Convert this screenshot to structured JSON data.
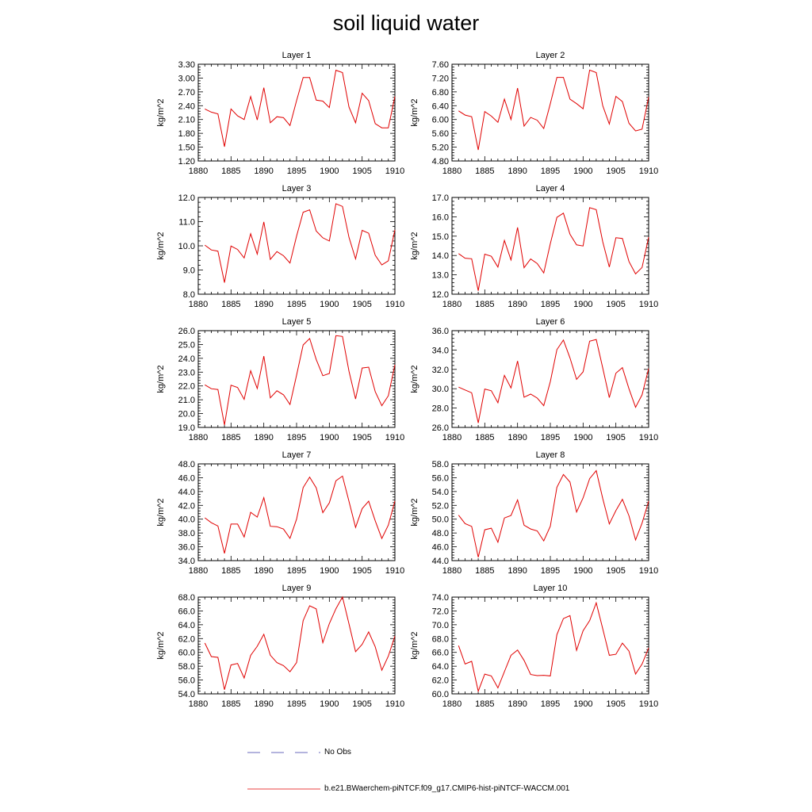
{
  "title": "soil liquid water",
  "colors": {
    "model_line": "#e00000",
    "obs_line": "#3a3aa8",
    "axis": "#000000"
  },
  "legend": [
    {
      "label": "No Obs",
      "style": "dashed",
      "color": "#3a3aa8"
    },
    {
      "label": "b.e21.BWaerchem-piNTCF.f09_g17.CMIP6-hist-piNTCF-WACCM.001",
      "style": "solid",
      "color": "#e00000"
    }
  ],
  "chart_data": [
    {
      "type": "line",
      "title": "Layer 1",
      "ylabel": "kg/m^2",
      "xlim": [
        1880,
        1910
      ],
      "ylim": [
        1.2,
        3.3
      ],
      "xticks": [
        1880,
        1885,
        1890,
        1895,
        1900,
        1905,
        1910
      ],
      "yticks": [
        "1.20",
        "1.50",
        "1.80",
        "2.10",
        "2.40",
        "2.70",
        "3.00",
        "3.30"
      ],
      "series": [
        {
          "x": [
            1881,
            1882,
            1883,
            1884,
            1885,
            1886,
            1887,
            1888,
            1889,
            1890,
            1891,
            1892,
            1893,
            1894,
            1895,
            1896,
            1897,
            1898,
            1899,
            1900,
            1901,
            1902,
            1903,
            1904,
            1905,
            1906,
            1907,
            1908,
            1909,
            1910
          ],
          "values": [
            2.33,
            2.26,
            2.22,
            1.51,
            2.33,
            2.18,
            2.1,
            2.6,
            2.09,
            2.79,
            2.03,
            2.16,
            2.14,
            1.97,
            2.51,
            3.01,
            3.01,
            2.52,
            2.5,
            2.36,
            3.17,
            3.12,
            2.37,
            2.03,
            2.67,
            2.51,
            2.01,
            1.92,
            1.92,
            2.6
          ]
        }
      ]
    },
    {
      "type": "line",
      "title": "Layer 2",
      "ylabel": "kg/m^2",
      "xlim": [
        1880,
        1910
      ],
      "ylim": [
        4.8,
        7.6
      ],
      "xticks": [
        1880,
        1885,
        1890,
        1895,
        1900,
        1905,
        1910
      ],
      "yticks": [
        "4.80",
        "5.20",
        "5.60",
        "6.00",
        "6.40",
        "6.80",
        "7.20",
        "7.60"
      ],
      "series": [
        {
          "x": [
            1881,
            1882,
            1883,
            1884,
            1885,
            1886,
            1887,
            1888,
            1889,
            1890,
            1891,
            1892,
            1893,
            1894,
            1895,
            1896,
            1897,
            1898,
            1899,
            1900,
            1901,
            1902,
            1903,
            1904,
            1905,
            1906,
            1907,
            1908,
            1909,
            1910
          ],
          "values": [
            6.25,
            6.13,
            6.08,
            5.12,
            6.23,
            6.1,
            5.92,
            6.59,
            6.0,
            6.91,
            5.81,
            6.06,
            5.98,
            5.74,
            6.46,
            7.22,
            7.22,
            6.59,
            6.46,
            6.31,
            7.43,
            7.36,
            6.4,
            5.87,
            6.67,
            6.52,
            5.89,
            5.67,
            5.72,
            6.65
          ]
        }
      ]
    },
    {
      "type": "line",
      "title": "Layer 3",
      "ylabel": "kg/m^2",
      "xlim": [
        1880,
        1910
      ],
      "ylim": [
        8.0,
        12.0
      ],
      "xticks": [
        1880,
        1885,
        1890,
        1895,
        1900,
        1905,
        1910
      ],
      "yticks": [
        "8.0",
        "9.0",
        "10.0",
        "11.0",
        "12.0"
      ],
      "series": [
        {
          "x": [
            1881,
            1882,
            1883,
            1884,
            1885,
            1886,
            1887,
            1888,
            1889,
            1890,
            1891,
            1892,
            1893,
            1894,
            1895,
            1896,
            1897,
            1898,
            1899,
            1900,
            1901,
            1902,
            1903,
            1904,
            1905,
            1906,
            1907,
            1908,
            1909,
            1910
          ],
          "values": [
            10.03,
            9.83,
            9.78,
            8.48,
            9.99,
            9.85,
            9.5,
            10.5,
            9.66,
            10.99,
            9.44,
            9.76,
            9.59,
            9.29,
            10.4,
            11.39,
            11.49,
            10.61,
            10.33,
            10.2,
            11.74,
            11.63,
            10.35,
            9.46,
            10.64,
            10.52,
            9.61,
            9.21,
            9.38,
            10.66
          ]
        }
      ]
    },
    {
      "type": "line",
      "title": "Layer 4",
      "ylabel": "kg/m^2",
      "xlim": [
        1880,
        1910
      ],
      "ylim": [
        12.0,
        17.0
      ],
      "xticks": [
        1880,
        1885,
        1890,
        1895,
        1900,
        1905,
        1910
      ],
      "yticks": [
        "12.0",
        "13.0",
        "14.0",
        "15.0",
        "16.0",
        "17.0"
      ],
      "series": [
        {
          "x": [
            1881,
            1882,
            1883,
            1884,
            1885,
            1886,
            1887,
            1888,
            1889,
            1890,
            1891,
            1892,
            1893,
            1894,
            1895,
            1896,
            1897,
            1898,
            1899,
            1900,
            1901,
            1902,
            1903,
            1904,
            1905,
            1906,
            1907,
            1908,
            1909,
            1910
          ],
          "values": [
            14.1,
            13.86,
            13.83,
            12.18,
            14.07,
            13.96,
            13.4,
            14.78,
            13.77,
            15.45,
            13.37,
            13.82,
            13.58,
            13.1,
            14.61,
            15.97,
            16.19,
            15.1,
            14.55,
            14.49,
            16.47,
            16.37,
            14.71,
            13.4,
            14.92,
            14.88,
            13.69,
            13.05,
            13.38,
            14.95
          ]
        }
      ]
    },
    {
      "type": "line",
      "title": "Layer 5",
      "ylabel": "kg/m^2",
      "xlim": [
        1880,
        1910
      ],
      "ylim": [
        19.0,
        26.0
      ],
      "xticks": [
        1880,
        1885,
        1890,
        1895,
        1900,
        1905,
        1910
      ],
      "yticks": [
        "19.0",
        "20.0",
        "21.0",
        "22.0",
        "23.0",
        "24.0",
        "25.0",
        "26.0"
      ],
      "series": [
        {
          "x": [
            1881,
            1882,
            1883,
            1884,
            1885,
            1886,
            1887,
            1888,
            1889,
            1890,
            1891,
            1892,
            1893,
            1894,
            1895,
            1896,
            1897,
            1898,
            1899,
            1900,
            1901,
            1902,
            1903,
            1904,
            1905,
            1906,
            1907,
            1908,
            1909,
            1910
          ],
          "values": [
            22.08,
            21.8,
            21.74,
            19.18,
            22.05,
            21.89,
            21.03,
            23.1,
            21.82,
            24.16,
            21.14,
            21.65,
            21.36,
            20.66,
            22.78,
            24.97,
            25.43,
            23.91,
            22.74,
            22.9,
            25.64,
            25.58,
            23.07,
            21.06,
            23.3,
            23.36,
            21.58,
            20.57,
            21.29,
            23.53
          ]
        }
      ]
    },
    {
      "type": "line",
      "title": "Layer 6",
      "ylabel": "kg/m^2",
      "xlim": [
        1880,
        1910
      ],
      "ylim": [
        26.0,
        36.0
      ],
      "xticks": [
        1880,
        1885,
        1890,
        1895,
        1900,
        1905,
        1910
      ],
      "yticks": [
        "26.0",
        "28.0",
        "30.0",
        "32.0",
        "34.0",
        "36.0"
      ],
      "series": [
        {
          "x": [
            1881,
            1882,
            1883,
            1884,
            1885,
            1886,
            1887,
            1888,
            1889,
            1890,
            1891,
            1892,
            1893,
            1894,
            1895,
            1896,
            1897,
            1898,
            1899,
            1900,
            1901,
            1902,
            1903,
            1904,
            1905,
            1906,
            1907,
            1908,
            1909,
            1910
          ],
          "values": [
            30.16,
            29.87,
            29.58,
            26.46,
            29.97,
            29.79,
            28.55,
            31.38,
            30.08,
            32.87,
            29.12,
            29.44,
            29.03,
            28.25,
            30.74,
            34.04,
            35.03,
            33.18,
            30.97,
            31.74,
            34.91,
            35.09,
            32.15,
            29.08,
            31.61,
            32.18,
            29.99,
            28.08,
            29.37,
            32.09
          ]
        }
      ]
    },
    {
      "type": "line",
      "title": "Layer 7",
      "ylabel": "kg/m^2",
      "xlim": [
        1880,
        1910
      ],
      "ylim": [
        34.0,
        48.0
      ],
      "xticks": [
        1880,
        1885,
        1890,
        1895,
        1900,
        1905,
        1910
      ],
      "yticks": [
        "34.0",
        "36.0",
        "38.0",
        "40.0",
        "42.0",
        "44.0",
        "46.0",
        "48.0"
      ],
      "series": [
        {
          "x": [
            1881,
            1882,
            1883,
            1884,
            1885,
            1886,
            1887,
            1888,
            1889,
            1890,
            1891,
            1892,
            1893,
            1894,
            1895,
            1896,
            1897,
            1898,
            1899,
            1900,
            1901,
            1902,
            1903,
            1904,
            1905,
            1906,
            1907,
            1908,
            1909,
            1910
          ],
          "values": [
            40.2,
            39.49,
            39.02,
            35.04,
            39.29,
            39.29,
            37.42,
            40.99,
            40.3,
            43.11,
            38.97,
            38.91,
            38.57,
            37.22,
            40.0,
            44.57,
            46.08,
            44.54,
            40.94,
            42.37,
            45.56,
            46.23,
            42.58,
            38.81,
            41.53,
            42.61,
            39.76,
            37.2,
            39.14,
            42.63
          ]
        }
      ]
    },
    {
      "type": "line",
      "title": "Layer 8",
      "ylabel": "kg/m^2",
      "xlim": [
        1880,
        1910
      ],
      "ylim": [
        44.0,
        58.0
      ],
      "xticks": [
        1880,
        1885,
        1890,
        1895,
        1900,
        1905,
        1910
      ],
      "yticks": [
        "44.0",
        "46.0",
        "48.0",
        "50.0",
        "52.0",
        "54.0",
        "56.0",
        "58.0"
      ],
      "series": [
        {
          "x": [
            1881,
            1882,
            1883,
            1884,
            1885,
            1886,
            1887,
            1888,
            1889,
            1890,
            1891,
            1892,
            1893,
            1894,
            1895,
            1896,
            1897,
            1898,
            1899,
            1900,
            1901,
            1902,
            1903,
            1904,
            1905,
            1906,
            1907,
            1908,
            1909,
            1910
          ],
          "values": [
            50.58,
            49.36,
            48.96,
            44.49,
            48.46,
            48.69,
            46.66,
            50.17,
            50.53,
            52.79,
            49.13,
            48.58,
            48.3,
            46.86,
            48.98,
            54.61,
            56.46,
            55.37,
            51.03,
            53.07,
            55.87,
            57.03,
            53.0,
            49.31,
            51.24,
            52.87,
            50.48,
            46.99,
            49.43,
            52.61
          ]
        }
      ]
    },
    {
      "type": "line",
      "title": "Layer 9",
      "ylabel": "kg/m^2",
      "xlim": [
        1880,
        1910
      ],
      "ylim": [
        54.0,
        68.0
      ],
      "xticks": [
        1880,
        1885,
        1890,
        1895,
        1900,
        1905,
        1910
      ],
      "yticks": [
        "54.0",
        "56.0",
        "58.0",
        "60.0",
        "62.0",
        "64.0",
        "66.0",
        "68.0"
      ],
      "series": [
        {
          "x": [
            1881,
            1882,
            1883,
            1884,
            1885,
            1886,
            1887,
            1888,
            1889,
            1890,
            1891,
            1892,
            1893,
            1894,
            1895,
            1896,
            1897,
            1898,
            1899,
            1900,
            1901,
            1902,
            1903,
            1904,
            1905,
            1906,
            1907,
            1908,
            1909,
            1910
          ],
          "values": [
            61.36,
            59.39,
            59.28,
            54.6,
            58.18,
            58.4,
            56.29,
            59.56,
            60.88,
            62.62,
            59.59,
            58.52,
            58.09,
            57.2,
            58.53,
            64.6,
            66.75,
            66.29,
            61.4,
            64.15,
            66.31,
            68.02,
            64.12,
            60.1,
            61.16,
            62.96,
            60.8,
            57.42,
            59.45,
            62.35
          ]
        }
      ]
    },
    {
      "type": "line",
      "title": "Layer 10",
      "ylabel": "kg/m^2",
      "xlim": [
        1880,
        1910
      ],
      "ylim": [
        60.0,
        74.0
      ],
      "xticks": [
        1880,
        1885,
        1890,
        1895,
        1900,
        1905,
        1910
      ],
      "yticks": [
        "60.0",
        "62.0",
        "64.0",
        "66.0",
        "68.0",
        "70.0",
        "72.0",
        "74.0"
      ],
      "series": [
        {
          "x": [
            1881,
            1882,
            1883,
            1884,
            1885,
            1886,
            1887,
            1888,
            1889,
            1890,
            1891,
            1892,
            1893,
            1894,
            1895,
            1896,
            1897,
            1898,
            1899,
            1900,
            1901,
            1902,
            1903,
            1904,
            1905,
            1906,
            1907,
            1908,
            1909,
            1910
          ],
          "values": [
            66.98,
            64.31,
            64.71,
            60.38,
            62.86,
            62.59,
            60.86,
            63.21,
            65.58,
            66.35,
            64.84,
            62.8,
            62.64,
            62.69,
            62.59,
            68.57,
            70.89,
            71.32,
            66.29,
            69.12,
            70.59,
            73.17,
            69.42,
            65.58,
            65.73,
            67.34,
            66.19,
            62.87,
            64.32,
            66.64
          ]
        }
      ]
    }
  ]
}
